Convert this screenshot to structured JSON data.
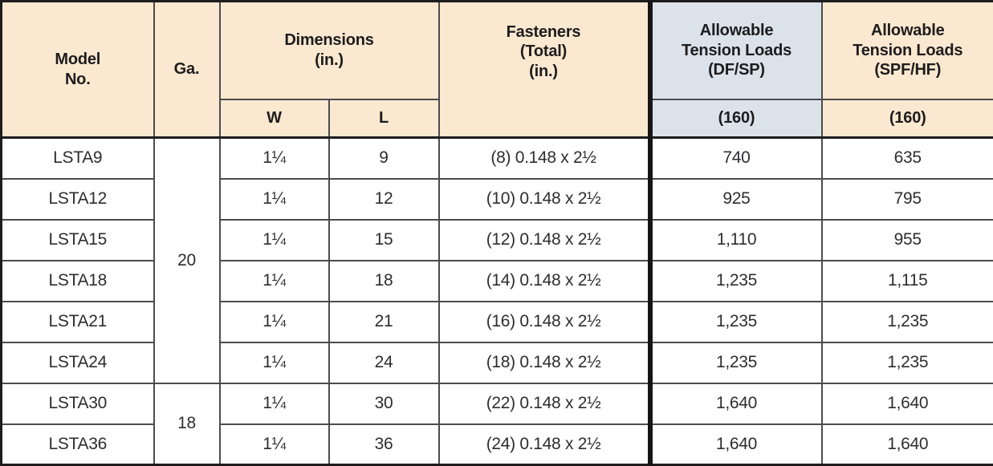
{
  "colors": {
    "header_tan": "#fae8d0",
    "header_blue": "#dbe2ea",
    "grid_line": "#4c4c4e",
    "outer_border": "#1e1c1d",
    "text": "#2e2d2f"
  },
  "table": {
    "headers": {
      "model_no": "Model\nNo.",
      "ga": "Ga.",
      "dimensions": "Dimensions\n(in.)",
      "w": "W",
      "l": "L",
      "fasteners": "Fasteners\n(Total)\n(in.)",
      "df_sp": "Allowable\nTension Loads\n(DF/SP)",
      "df_sp_sub": "(160)",
      "spf_hf": "Allowable\nTension Loads\n(SPF/HF)",
      "spf_hf_sub": "(160)"
    },
    "ga_groups": [
      {
        "ga": "20",
        "row_span": 6
      },
      {
        "ga": "18",
        "row_span": 2
      }
    ],
    "rows": [
      {
        "model": "LSTA9",
        "w": "1¼",
        "l": "9",
        "fasteners": "(8) 0.148 x 2½",
        "df_sp": "740",
        "spf_hf": "635"
      },
      {
        "model": "LSTA12",
        "w": "1¼",
        "l": "12",
        "fasteners": "(10) 0.148 x 2½",
        "df_sp": "925",
        "spf_hf": "795"
      },
      {
        "model": "LSTA15",
        "w": "1¼",
        "l": "15",
        "fasteners": "(12) 0.148 x 2½",
        "df_sp": "1,110",
        "spf_hf": "955"
      },
      {
        "model": "LSTA18",
        "w": "1¼",
        "l": "18",
        "fasteners": "(14) 0.148 x 2½",
        "df_sp": "1,235",
        "spf_hf": "1,115"
      },
      {
        "model": "LSTA21",
        "w": "1¼",
        "l": "21",
        "fasteners": "(16) 0.148 x 2½",
        "df_sp": "1,235",
        "spf_hf": "1,235"
      },
      {
        "model": "LSTA24",
        "w": "1¼",
        "l": "24",
        "fasteners": "(18) 0.148 x 2½",
        "df_sp": "1,235",
        "spf_hf": "1,235"
      },
      {
        "model": "LSTA30",
        "w": "1¼",
        "l": "30",
        "fasteners": "(22) 0.148 x 2½",
        "df_sp": "1,640",
        "spf_hf": "1,640"
      },
      {
        "model": "LSTA36",
        "w": "1¼",
        "l": "36",
        "fasteners": "(24) 0.148 x 2½",
        "df_sp": "1,640",
        "spf_hf": "1,640"
      }
    ]
  }
}
